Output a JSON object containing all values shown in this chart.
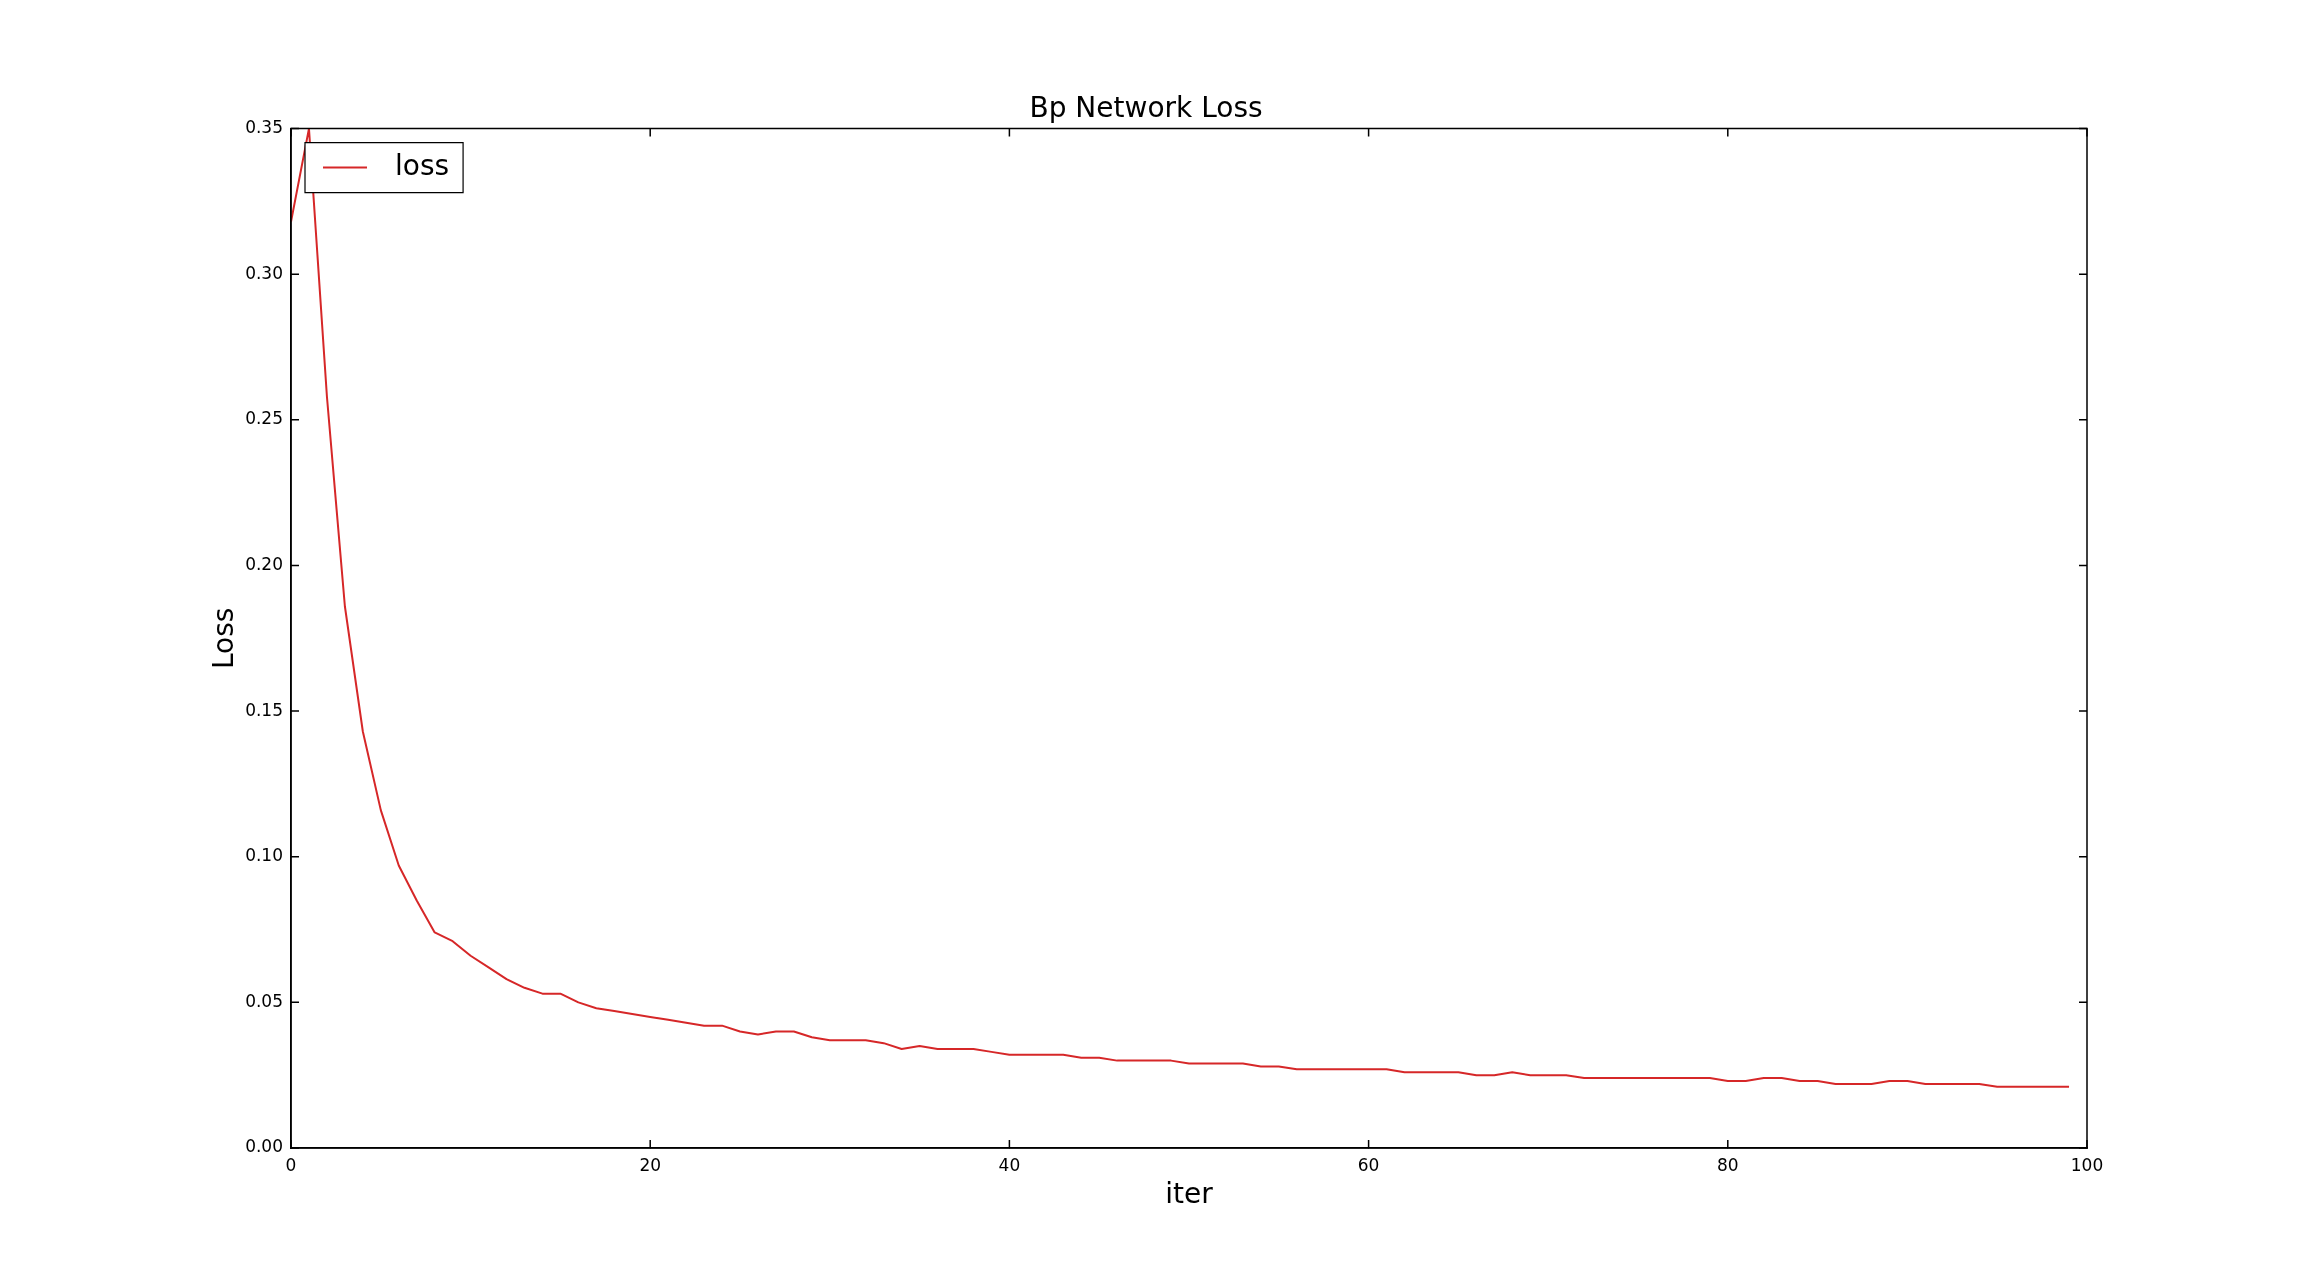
{
  "chart_data": {
    "type": "line",
    "title": "Bp Network Loss",
    "xlabel": "iter",
    "ylabel": "Loss",
    "x": [
      0,
      1,
      2,
      3,
      4,
      5,
      6,
      7,
      8,
      9,
      10,
      11,
      12,
      13,
      14,
      15,
      16,
      17,
      18,
      19,
      20,
      21,
      22,
      23,
      24,
      25,
      26,
      27,
      28,
      29,
      30,
      31,
      32,
      33,
      34,
      35,
      36,
      37,
      38,
      39,
      40,
      41,
      42,
      43,
      44,
      45,
      46,
      47,
      48,
      49,
      50,
      51,
      52,
      53,
      54,
      55,
      56,
      57,
      58,
      59,
      60,
      61,
      62,
      63,
      64,
      65,
      66,
      67,
      68,
      69,
      70,
      71,
      72,
      73,
      74,
      75,
      76,
      77,
      78,
      79,
      80,
      81,
      82,
      83,
      84,
      85,
      86,
      87,
      88,
      89,
      90,
      91,
      92,
      93,
      94,
      95,
      96,
      97,
      98,
      99
    ],
    "series": [
      {
        "name": "loss",
        "color": "#d62728",
        "values": [
          0.318,
          0.35,
          0.258,
          0.186,
          0.143,
          0.116,
          0.097,
          0.085,
          0.074,
          0.071,
          0.066,
          0.062,
          0.058,
          0.055,
          0.053,
          0.053,
          0.05,
          0.048,
          0.047,
          0.046,
          0.045,
          0.044,
          0.043,
          0.042,
          0.042,
          0.04,
          0.039,
          0.04,
          0.04,
          0.038,
          0.037,
          0.037,
          0.037,
          0.036,
          0.034,
          0.035,
          0.034,
          0.034,
          0.034,
          0.033,
          0.032,
          0.032,
          0.032,
          0.032,
          0.031,
          0.031,
          0.03,
          0.03,
          0.03,
          0.03,
          0.029,
          0.029,
          0.029,
          0.029,
          0.028,
          0.028,
          0.027,
          0.027,
          0.027,
          0.027,
          0.027,
          0.027,
          0.026,
          0.026,
          0.026,
          0.026,
          0.025,
          0.025,
          0.026,
          0.025,
          0.025,
          0.025,
          0.024,
          0.024,
          0.024,
          0.024,
          0.024,
          0.024,
          0.024,
          0.024,
          0.023,
          0.023,
          0.024,
          0.024,
          0.023,
          0.023,
          0.022,
          0.022,
          0.022,
          0.023,
          0.023,
          0.022,
          0.022,
          0.022,
          0.022,
          0.021,
          0.021,
          0.021,
          0.021,
          0.021
        ]
      }
    ],
    "xlim": [
      0,
      100
    ],
    "xticks": [
      0,
      20,
      40,
      60,
      80,
      100
    ],
    "ylim": [
      0,
      0.35
    ],
    "yticks": [
      {
        "value": 0,
        "label": "0.00"
      },
      {
        "value": 0.05,
        "label": "0.05"
      },
      {
        "value": 0.1,
        "label": "0.10"
      },
      {
        "value": 0.15,
        "label": "0.15"
      },
      {
        "value": 0.2,
        "label": "0.20"
      },
      {
        "value": 0.25,
        "label": "0.25"
      },
      {
        "value": 0.3,
        "label": "0.30"
      },
      {
        "value": 0.35,
        "label": "0.35"
      }
    ],
    "grid": false,
    "legend": "top left",
    "marker": "none",
    "line_style": "solid"
  }
}
